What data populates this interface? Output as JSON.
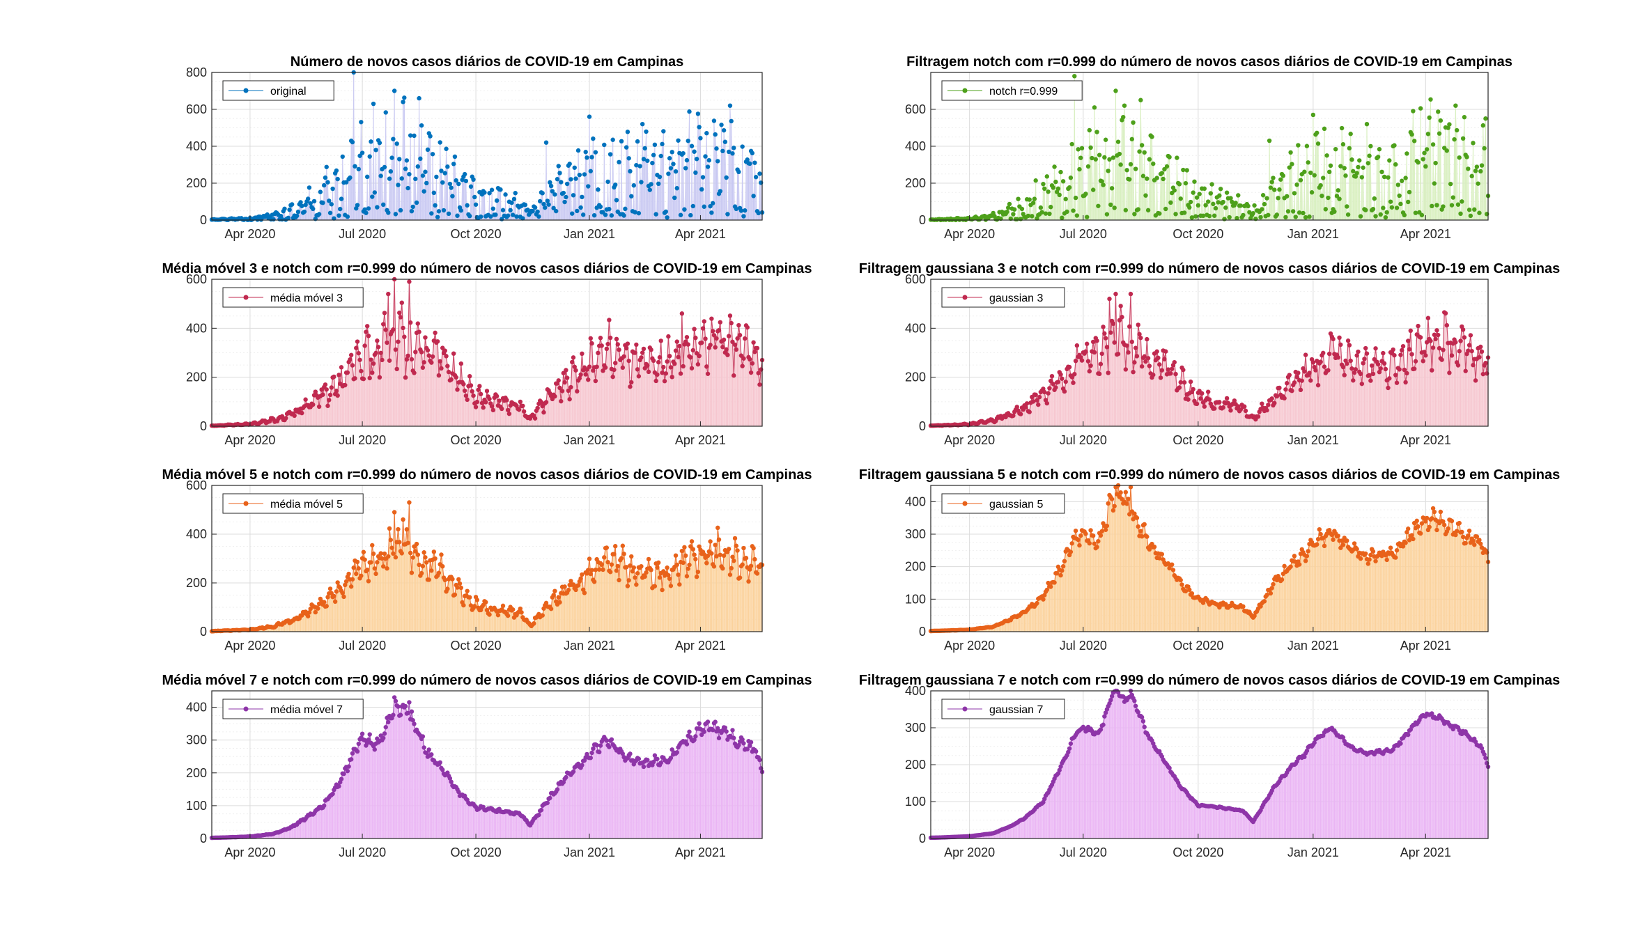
{
  "figure": {
    "background": "#ffffff"
  },
  "chart_data": [
    {
      "id": "p1",
      "type": "stem",
      "title": "Número de novos casos diários de COVID-19 em Campinas",
      "legend": "original",
      "color": "#0072BD",
      "fill": "#c9c9f2",
      "ylim": [
        0,
        800
      ],
      "yticks": [
        0,
        200,
        400,
        600,
        800
      ],
      "xticks": [
        "Apr 2020",
        "Jul 2020",
        "Oct 2020",
        "Jan 2021",
        "Apr 2021"
      ],
      "xticks_day": [
        31,
        122,
        214,
        306,
        396
      ],
      "x_day_range": [
        0,
        446
      ],
      "grid": true,
      "legend_position": "top-left",
      "anchors_day": [
        0,
        10,
        31,
        50,
        65,
        75,
        90,
        105,
        115,
        122,
        135,
        150,
        160,
        175,
        185,
        200,
        214,
        230,
        250,
        260,
        275,
        290,
        300,
        306,
        320,
        335,
        350,
        370,
        385,
        396,
        410,
        425,
        440,
        446
      ],
      "anchors_value": [
        2,
        4,
        8,
        25,
        55,
        80,
        150,
        190,
        260,
        300,
        310,
        400,
        350,
        300,
        280,
        200,
        130,
        110,
        90,
        40,
        140,
        220,
        250,
        260,
        330,
        300,
        260,
        280,
        330,
        360,
        380,
        330,
        300,
        250
      ],
      "noise": 0.85,
      "spikes": [
        [
          115,
          800
        ],
        [
          148,
          700
        ],
        [
          168,
          660
        ],
        [
          155,
          640
        ],
        [
          131,
          630
        ],
        [
          271,
          420
        ],
        [
          306,
          560
        ],
        [
          349,
          520
        ],
        [
          420,
          620
        ]
      ]
    },
    {
      "id": "p2",
      "type": "stem",
      "title": "Filtragem notch com r=0.999 do número de novos casos diários de COVID-19 em Campinas",
      "legend": "notch r=0.999",
      "color": "#4DA01A",
      "fill": "#d8efbf",
      "ylim": [
        0,
        800
      ],
      "yticks": [
        0,
        200,
        400,
        600
      ],
      "xticks": [
        "Apr 2020",
        "Jul 2020",
        "Oct 2020",
        "Jan 2021",
        "Apr 2021"
      ],
      "xticks_day": [
        31,
        122,
        214,
        306,
        396
      ],
      "x_day_range": [
        0,
        446
      ],
      "grid": true,
      "legend_position": "top-left",
      "anchors_day": [
        0,
        10,
        31,
        50,
        65,
        75,
        90,
        105,
        115,
        122,
        135,
        150,
        160,
        175,
        185,
        200,
        214,
        230,
        250,
        260,
        275,
        290,
        300,
        306,
        320,
        335,
        350,
        370,
        385,
        396,
        410,
        425,
        440,
        446
      ],
      "anchors_value": [
        2,
        4,
        8,
        25,
        55,
        80,
        150,
        190,
        260,
        300,
        310,
        400,
        350,
        300,
        280,
        200,
        130,
        110,
        90,
        40,
        140,
        220,
        250,
        260,
        330,
        300,
        260,
        280,
        330,
        360,
        380,
        330,
        300,
        250
      ],
      "noise": 0.85,
      "spikes": [
        [
          115,
          780
        ],
        [
          148,
          700
        ],
        [
          168,
          650
        ],
        [
          155,
          620
        ],
        [
          131,
          610
        ],
        [
          271,
          430
        ],
        [
          306,
          570
        ],
        [
          349,
          520
        ],
        [
          420,
          620
        ],
        [
          444,
          550
        ]
      ]
    },
    {
      "id": "p3",
      "type": "stem",
      "title": "Média móvel 3 e notch com r=0.999 do número de novos casos diários de COVID-19 em Campinas",
      "legend": "média móvel 3",
      "color": "#C0294F",
      "fill": "#f6c6cf",
      "ylim": [
        0,
        600
      ],
      "yticks": [
        0,
        200,
        400,
        600
      ],
      "xticks": [
        "Apr 2020",
        "Jul 2020",
        "Oct 2020",
        "Jan 2021",
        "Apr 2021"
      ],
      "xticks_day": [
        31,
        122,
        214,
        306,
        396
      ],
      "x_day_range": [
        0,
        446
      ],
      "grid": true,
      "legend_position": "top-left",
      "anchors_day": [
        0,
        10,
        31,
        50,
        65,
        75,
        90,
        105,
        115,
        122,
        135,
        150,
        160,
        175,
        185,
        200,
        214,
        230,
        250,
        258,
        275,
        290,
        300,
        306,
        320,
        335,
        350,
        370,
        385,
        396,
        410,
        425,
        440,
        446
      ],
      "anchors_value": [
        2,
        4,
        8,
        25,
        50,
        75,
        130,
        180,
        240,
        290,
        300,
        380,
        330,
        290,
        270,
        190,
        120,
        100,
        80,
        30,
        130,
        200,
        230,
        250,
        310,
        290,
        250,
        260,
        310,
        340,
        360,
        320,
        290,
        240
      ],
      "noise": 0.45,
      "spikes": [
        [
          148,
          600
        ],
        [
          160,
          590
        ],
        [
          143,
          540
        ],
        [
          381,
          460
        ]
      ]
    },
    {
      "id": "p4",
      "type": "stem",
      "title": "Filtragem gaussiana 3 e notch com r=0.999 do número de novos casos diários de COVID-19 em Campinas",
      "legend": "gaussian 3",
      "color": "#C0294F",
      "fill": "#f6c6cf",
      "ylim": [
        0,
        600
      ],
      "yticks": [
        0,
        200,
        400,
        600
      ],
      "xticks": [
        "Apr 2020",
        "Jul 2020",
        "Oct 2020",
        "Jan 2021",
        "Apr 2021"
      ],
      "xticks_day": [
        31,
        122,
        214,
        306,
        396
      ],
      "x_day_range": [
        0,
        446
      ],
      "grid": true,
      "legend_position": "top-left",
      "anchors_day": [
        0,
        10,
        31,
        50,
        65,
        75,
        90,
        105,
        115,
        122,
        135,
        150,
        160,
        175,
        185,
        200,
        214,
        230,
        250,
        258,
        275,
        290,
        300,
        306,
        320,
        335,
        350,
        370,
        385,
        396,
        410,
        425,
        440,
        446
      ],
      "anchors_value": [
        2,
        4,
        8,
        25,
        50,
        75,
        130,
        180,
        240,
        290,
        300,
        370,
        320,
        280,
        260,
        180,
        115,
        95,
        75,
        30,
        125,
        190,
        220,
        240,
        300,
        280,
        240,
        250,
        300,
        330,
        350,
        310,
        280,
        230
      ],
      "noise": 0.38,
      "spikes": [
        [
          148,
          540
        ],
        [
          160,
          540
        ],
        [
          143,
          520
        ]
      ]
    },
    {
      "id": "p5",
      "type": "stem",
      "title": "Média móvel 5 e notch com r=0.999 do número de novos casos diários de COVID-19 em Campinas",
      "legend": "média móvel 5",
      "color": "#E8621A",
      "fill": "#fbd29c",
      "ylim": [
        0,
        600
      ],
      "yticks": [
        0,
        200,
        400,
        600
      ],
      "xticks": [
        "Apr 2020",
        "Jul 2020",
        "Oct 2020",
        "Jan 2021",
        "Apr 2021"
      ],
      "xticks_day": [
        31,
        122,
        214,
        306,
        396
      ],
      "x_day_range": [
        0,
        446
      ],
      "grid": true,
      "legend_position": "top-left",
      "anchors_day": [
        0,
        10,
        31,
        50,
        65,
        75,
        90,
        105,
        115,
        122,
        135,
        150,
        160,
        175,
        185,
        200,
        214,
        230,
        250,
        258,
        275,
        290,
        300,
        306,
        320,
        335,
        350,
        370,
        385,
        396,
        410,
        425,
        440,
        446
      ],
      "anchors_value": [
        2,
        4,
        8,
        22,
        45,
        70,
        120,
        170,
        230,
        280,
        290,
        370,
        320,
        280,
        250,
        170,
        110,
        90,
        75,
        25,
        120,
        180,
        210,
        240,
        290,
        270,
        230,
        240,
        290,
        320,
        340,
        300,
        270,
        230
      ],
      "noise": 0.3,
      "spikes": [
        [
          148,
          490
        ],
        [
          160,
          530
        ],
        [
          155,
          460
        ]
      ]
    },
    {
      "id": "p6",
      "type": "stem",
      "title": "Filtragem gaussiana 5 e notch com r=0.999 do número de novos casos diários de COVID-19 em Campinas",
      "legend": "gaussian 5",
      "color": "#E8621A",
      "fill": "#fbd29c",
      "ylim": [
        0,
        450
      ],
      "yticks": [
        0,
        100,
        200,
        300,
        400
      ],
      "xticks": [
        "Apr 2020",
        "Jul 2020",
        "Oct 2020",
        "Jan 2021",
        "Apr 2021"
      ],
      "xticks_day": [
        31,
        122,
        214,
        306,
        396
      ],
      "x_day_range": [
        0,
        446
      ],
      "grid": true,
      "legend_position": "top-left",
      "anchors_day": [
        0,
        10,
        31,
        50,
        65,
        75,
        90,
        105,
        115,
        122,
        135,
        145,
        150,
        160,
        175,
        185,
        200,
        214,
        230,
        250,
        258,
        275,
        290,
        300,
        306,
        320,
        335,
        350,
        370,
        385,
        396,
        410,
        425,
        440,
        446
      ],
      "anchors_value": [
        2,
        3,
        6,
        15,
        40,
        60,
        110,
        200,
        280,
        300,
        280,
        400,
        420,
        380,
        270,
        230,
        150,
        100,
        85,
        75,
        45,
        150,
        210,
        240,
        270,
        310,
        260,
        230,
        240,
        300,
        340,
        340,
        300,
        270,
        220
      ],
      "noise": 0.12,
      "spikes": [
        [
          148,
          445
        ],
        [
          160,
          445
        ],
        [
          143,
          420
        ]
      ]
    },
    {
      "id": "p7",
      "type": "stem",
      "title": "Média móvel 7 e notch com r=0.999 do número de novos casos diários de COVID-19 em Campinas",
      "legend": "média móvel 7",
      "color": "#8E35A8",
      "fill": "#eab4f4",
      "ylim": [
        0,
        450
      ],
      "yticks": [
        0,
        100,
        200,
        300,
        400
      ],
      "xticks": [
        "Apr 2020",
        "Jul 2020",
        "Oct 2020",
        "Jan 2021",
        "Apr 2021"
      ],
      "xticks_day": [
        31,
        122,
        214,
        306,
        396
      ],
      "x_day_range": [
        0,
        446
      ],
      "grid": true,
      "legend_position": "top-left",
      "anchors_day": [
        0,
        10,
        31,
        50,
        65,
        75,
        90,
        105,
        115,
        122,
        135,
        145,
        150,
        160,
        175,
        185,
        200,
        214,
        230,
        250,
        258,
        275,
        290,
        300,
        306,
        320,
        335,
        350,
        370,
        385,
        396,
        410,
        425,
        440,
        446
      ],
      "anchors_value": [
        2,
        3,
        6,
        14,
        35,
        60,
        100,
        180,
        260,
        300,
        290,
        370,
        410,
        380,
        260,
        220,
        140,
        95,
        85,
        75,
        40,
        130,
        200,
        230,
        260,
        300,
        250,
        230,
        240,
        300,
        340,
        330,
        300,
        270,
        210
      ],
      "noise": 0.08,
      "spikes": [
        [
          148,
          430
        ],
        [
          160,
          415
        ]
      ]
    },
    {
      "id": "p8",
      "type": "stem",
      "title": "Filtragem gaussiana 7 e notch com r=0.999 do número de novos casos diários de COVID-19 em Campinas",
      "legend": "gaussian 7",
      "color": "#8E35A8",
      "fill": "#eab4f4",
      "ylim": [
        0,
        400
      ],
      "yticks": [
        0,
        100,
        200,
        300,
        400
      ],
      "xticks": [
        "Apr 2020",
        "Jul 2020",
        "Oct 2020",
        "Jan 2021",
        "Apr 2021"
      ],
      "xticks_day": [
        31,
        122,
        214,
        306,
        396
      ],
      "x_day_range": [
        0,
        446
      ],
      "grid": true,
      "legend_position": "top-left",
      "anchors_day": [
        0,
        10,
        31,
        50,
        65,
        75,
        90,
        105,
        115,
        122,
        135,
        145,
        150,
        155,
        160,
        175,
        185,
        200,
        214,
        230,
        250,
        258,
        275,
        290,
        300,
        306,
        320,
        335,
        350,
        370,
        385,
        396,
        410,
        425,
        440,
        446
      ],
      "anchors_value": [
        2,
        3,
        6,
        14,
        35,
        55,
        100,
        200,
        280,
        300,
        285,
        390,
        400,
        370,
        395,
        270,
        220,
        140,
        90,
        85,
        75,
        45,
        140,
        200,
        230,
        260,
        300,
        250,
        230,
        240,
        300,
        340,
        320,
        290,
        250,
        200
      ],
      "noise": 0.03,
      "spikes": [
        [
          148,
          400
        ],
        [
          160,
          400
        ]
      ]
    }
  ]
}
